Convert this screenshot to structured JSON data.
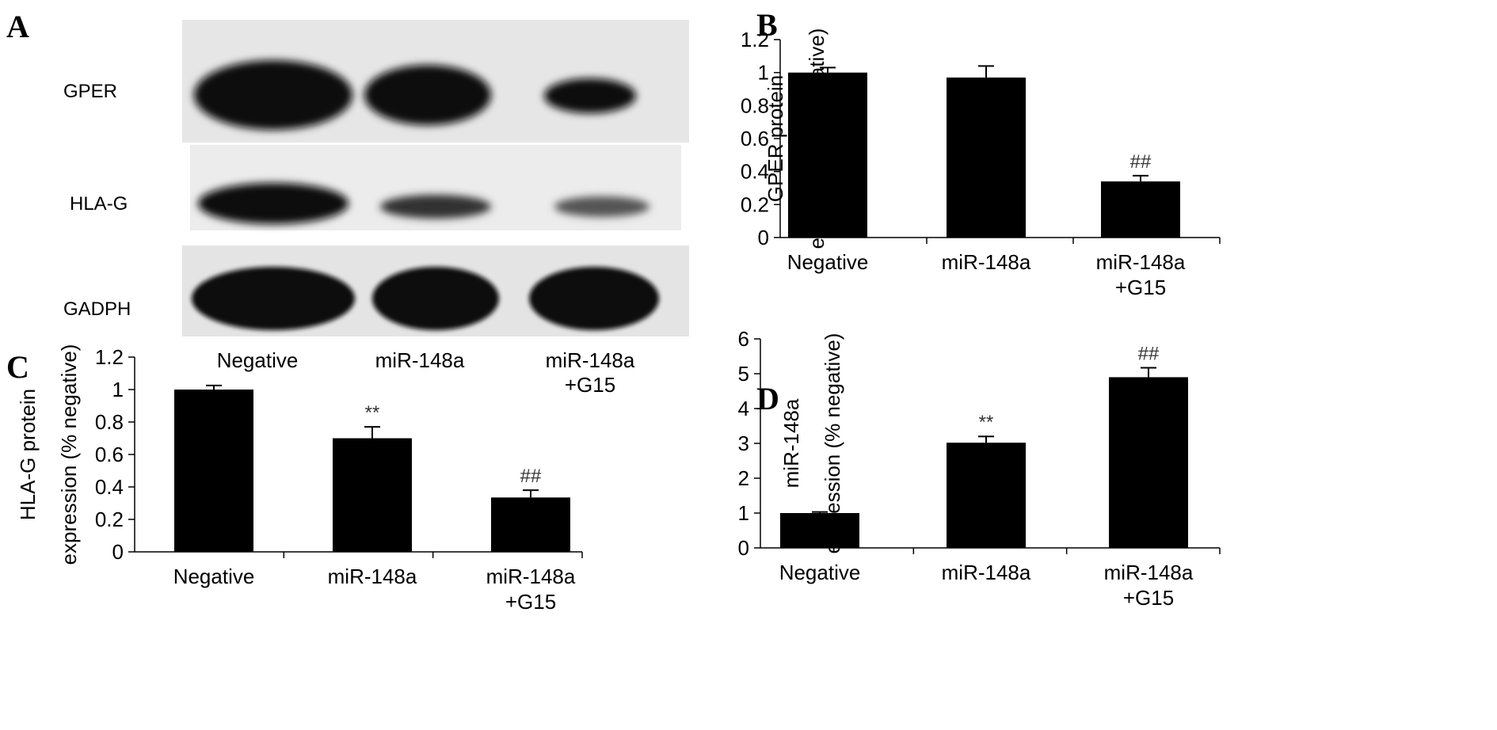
{
  "panels": {
    "A": {
      "letter": "A",
      "blot_rows": [
        "GPER",
        "HLA-G",
        "GADPH"
      ],
      "lanes": [
        {
          "line1": "Negative",
          "line2": ""
        },
        {
          "line1": "miR-148a",
          "line2": ""
        },
        {
          "line1": "miR-148a",
          "line2": "+G15"
        }
      ]
    },
    "B": {
      "letter": "B"
    },
    "C": {
      "letter": "C"
    },
    "D": {
      "letter": "D"
    }
  },
  "chart_data": [
    {
      "id": "B",
      "type": "bar",
      "categories": [
        {
          "line1": "Negative",
          "line2": ""
        },
        {
          "line1": "miR-148a",
          "line2": ""
        },
        {
          "line1": "miR-148a",
          "line2": "+G15"
        }
      ],
      "values": [
        1.0,
        0.97,
        0.34
      ],
      "errors": [
        0.03,
        0.07,
        0.035
      ],
      "annotations": [
        "",
        "",
        "##"
      ],
      "ylabel_line1": "GPER protein",
      "ylabel_line2": "expression (% negative)",
      "ylim": [
        0,
        1.2
      ],
      "yticks": [
        0,
        0.2,
        0.4,
        0.6,
        0.8,
        1,
        1.2
      ],
      "ytick_labels": [
        "0",
        "0.2",
        "0.4",
        "0.6",
        "0.8",
        "1",
        "1.2"
      ],
      "bar_color": "#000000"
    },
    {
      "id": "C",
      "type": "bar",
      "categories": [
        {
          "line1": "Negative",
          "line2": ""
        },
        {
          "line1": "miR-148a",
          "line2": ""
        },
        {
          "line1": "miR-148a",
          "line2": "+G15"
        }
      ],
      "values": [
        1.0,
        0.7,
        0.335
      ],
      "errors": [
        0.025,
        0.07,
        0.045
      ],
      "annotations": [
        "",
        "**",
        "##"
      ],
      "ylabel_line1": "HLA-G protein",
      "ylabel_line2": "expression (% negative)",
      "ylim": [
        0,
        1.2
      ],
      "yticks": [
        0,
        0.2,
        0.4,
        0.6,
        0.8,
        1,
        1.2
      ],
      "ytick_labels": [
        "0",
        "0.2",
        "0.4",
        "0.6",
        "0.8",
        "1",
        "1.2"
      ],
      "bar_color": "#000000"
    },
    {
      "id": "D",
      "type": "bar",
      "categories": [
        {
          "line1": "Negative",
          "line2": ""
        },
        {
          "line1": "miR-148a",
          "line2": ""
        },
        {
          "line1": "miR-148a",
          "line2": "+G15"
        }
      ],
      "values": [
        1.0,
        3.02,
        4.9
      ],
      "errors": [
        0.03,
        0.18,
        0.27
      ],
      "annotations": [
        "",
        "**",
        "##"
      ],
      "ylabel_line1": "miR-148a",
      "ylabel_line2": "expression (% negative)",
      "ylim": [
        0,
        6
      ],
      "yticks": [
        0,
        1,
        2,
        3,
        4,
        5,
        6
      ],
      "ytick_labels": [
        "0",
        "1",
        "2",
        "3",
        "4",
        "5",
        "6"
      ],
      "bar_color": "#000000"
    }
  ]
}
